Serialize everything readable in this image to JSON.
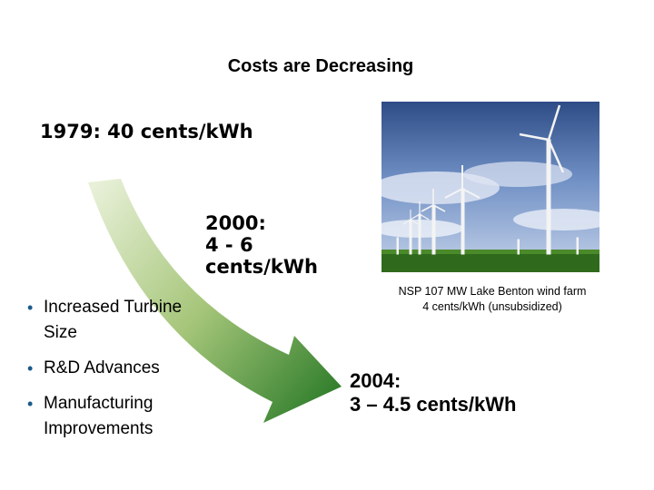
{
  "title": "Costs are Decreasing",
  "milestones": {
    "y1979": "1979: 40 cents/kWh",
    "y2000": [
      "2000:",
      "4 - 6",
      "cents/kWh"
    ],
    "y2004": [
      "2004:",
      "3 – 4.5 cents/kWh"
    ]
  },
  "photo": {
    "caption_line1": "NSP 107 MW Lake Benton wind farm",
    "caption_line2": "4 cents/kWh (unsubsidized)"
  },
  "bullets": [
    "Increased Turbine Size",
    "R&D Advances",
    "Manufacturing Improvements"
  ],
  "bullet_symbol": "•",
  "colors": {
    "arrow_dark": "#2e7d2a",
    "arrow_light": "#e8f0d8",
    "bullet": "#1a5a8c"
  }
}
